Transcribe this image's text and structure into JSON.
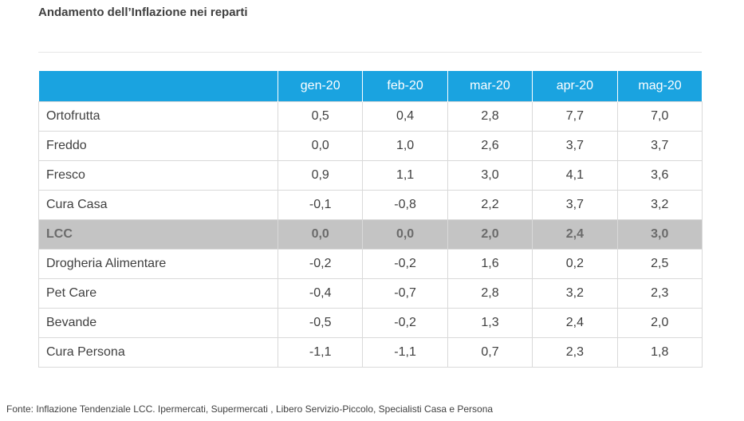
{
  "title": "Andamento dell’Inflazione nei reparti",
  "chart_data": {
    "type": "table",
    "columns": [
      "gen-20",
      "feb-20",
      "mar-20",
      "apr-20",
      "mag-20"
    ],
    "rows": [
      {
        "label": "Ortofrutta",
        "values": [
          "0,5",
          "0,4",
          "2,8",
          "7,7",
          "7,0"
        ],
        "highlight": false
      },
      {
        "label": "Freddo",
        "values": [
          "0,0",
          "1,0",
          "2,6",
          "3,7",
          "3,7"
        ],
        "highlight": false
      },
      {
        "label": "Fresco",
        "values": [
          "0,9",
          "1,1",
          "3,0",
          "4,1",
          "3,6"
        ],
        "highlight": false
      },
      {
        "label": "Cura Casa",
        "values": [
          "-0,1",
          "-0,8",
          "2,2",
          "3,7",
          "3,2"
        ],
        "highlight": false
      },
      {
        "label": "LCC",
        "values": [
          "0,0",
          "0,0",
          "2,0",
          "2,4",
          "3,0"
        ],
        "highlight": true
      },
      {
        "label": "Drogheria Alimentare",
        "values": [
          "-0,2",
          "-0,2",
          "1,6",
          "0,2",
          "2,5"
        ],
        "highlight": false
      },
      {
        "label": "Pet Care",
        "values": [
          "-0,4",
          "-0,7",
          "2,8",
          "3,2",
          "2,3"
        ],
        "highlight": false
      },
      {
        "label": "Bevande",
        "values": [
          "-0,5",
          "-0,2",
          "1,3",
          "2,4",
          "2,0"
        ],
        "highlight": false
      },
      {
        "label": "Cura Persona",
        "values": [
          "-1,1",
          "-1,1",
          "0,7",
          "2,3",
          "1,8"
        ],
        "highlight": false
      }
    ]
  },
  "source": "Fonte: Inflazione Tendenziale LCC. Ipermercati, Supermercati , Libero Servizio-Piccolo, Specialisti Casa e Persona",
  "colors": {
    "header_bg": "#1aa3e0",
    "highlight_bg": "#c4c4c4",
    "border": "#d9d9d9"
  }
}
